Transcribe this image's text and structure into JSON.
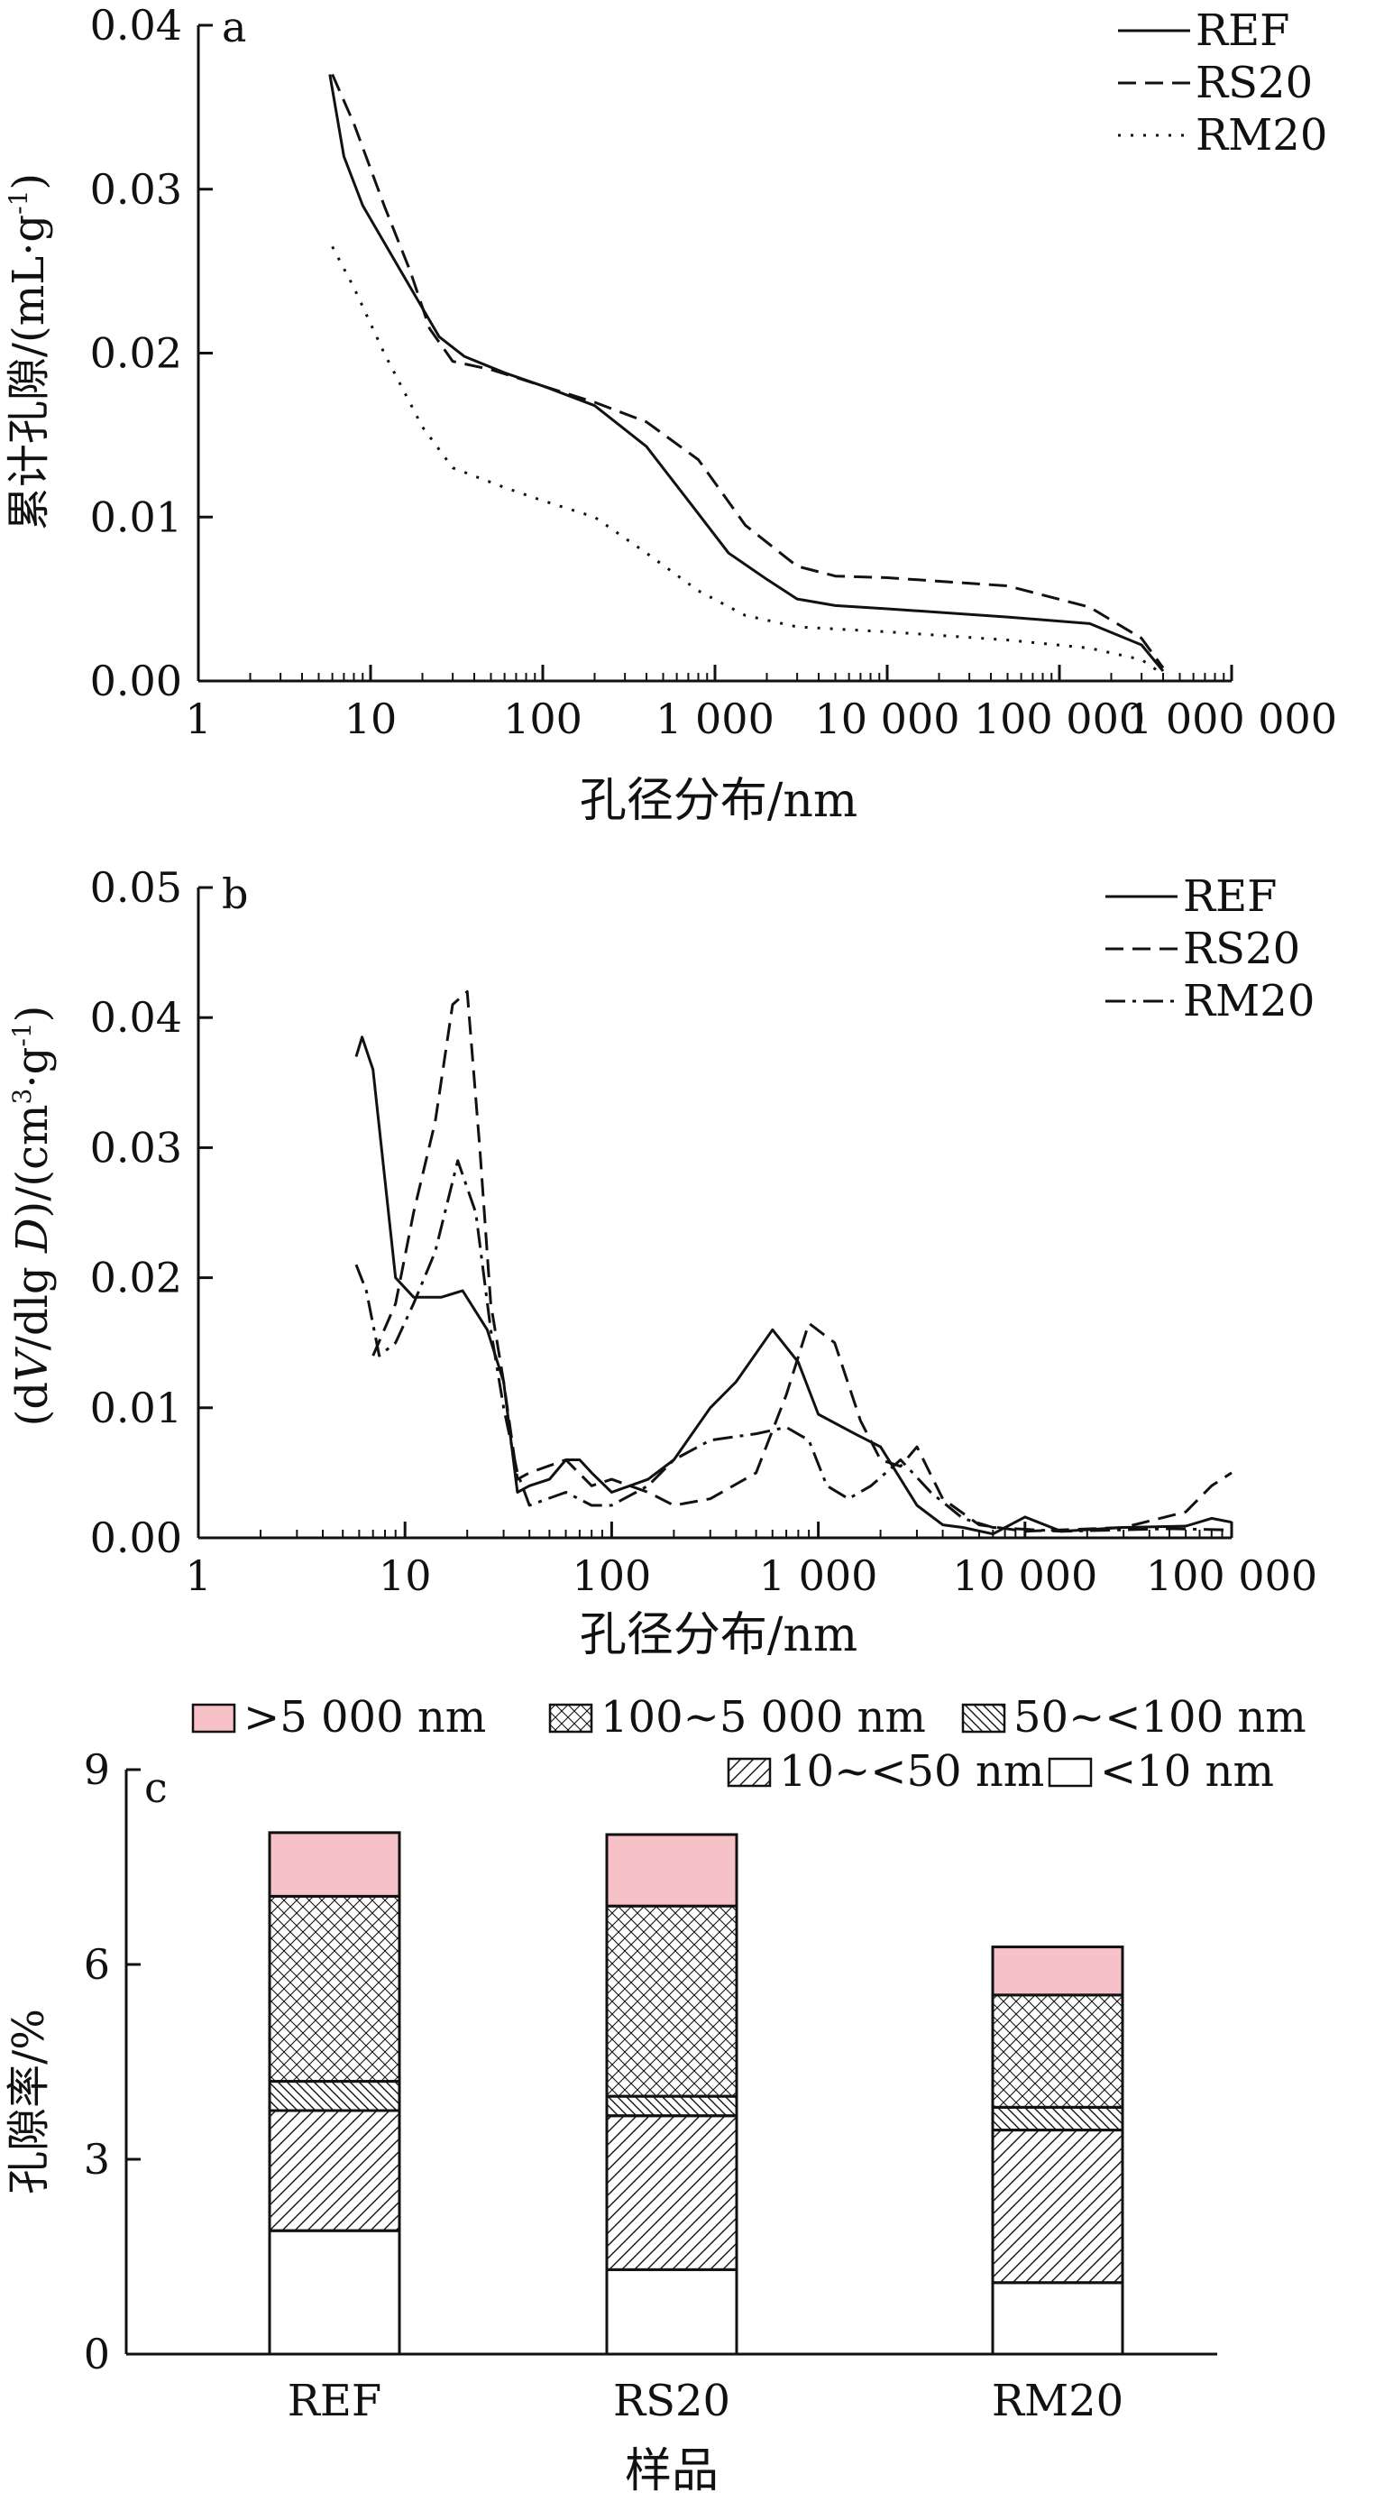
{
  "colors": {
    "ink": "#111111",
    "pink": "#f7c1c8",
    "white": "#ffffff"
  },
  "chart_data": [
    {
      "panel_label": "a",
      "type": "line",
      "xscale": "log",
      "xlim": [
        1,
        1000000
      ],
      "ylim": [
        0,
        0.04
      ],
      "xlabel": "孔径分布/nm",
      "ylabel": "累计孔隙/(mL·g",
      "ylabel_sup": "-1",
      "ylabel_end": ")",
      "xticks": [
        {
          "value": 1,
          "label": "1"
        },
        {
          "value": 10,
          "label": "10"
        },
        {
          "value": 100,
          "label": "100"
        },
        {
          "value": 1000,
          "label": "1 000"
        },
        {
          "value": 10000,
          "label": "10 000"
        },
        {
          "value": 100000,
          "label": "100 000"
        },
        {
          "value": 1000000,
          "label": "1 000 000"
        }
      ],
      "yticks": [
        {
          "value": 0,
          "label": "0.00"
        },
        {
          "value": 0.01,
          "label": "0.01"
        },
        {
          "value": 0.02,
          "label": "0.02"
        },
        {
          "value": 0.03,
          "label": "0.03"
        },
        {
          "value": 0.04,
          "label": "0.04"
        }
      ],
      "legend_position": "top-right",
      "series": [
        {
          "name": "REF",
          "style": "solid",
          "points": [
            [
              5.8,
              0.037
            ],
            [
              7,
              0.032
            ],
            [
              9,
              0.029
            ],
            [
              15,
              0.025
            ],
            [
              25,
              0.021
            ],
            [
              35,
              0.0198
            ],
            [
              60,
              0.0188
            ],
            [
              100,
              0.018
            ],
            [
              200,
              0.0168
            ],
            [
              400,
              0.0143
            ],
            [
              700,
              0.011
            ],
            [
              1200,
              0.0078
            ],
            [
              2000,
              0.0062
            ],
            [
              3000,
              0.005
            ],
            [
              5000,
              0.0046
            ],
            [
              10000,
              0.0044
            ],
            [
              50000,
              0.0039
            ],
            [
              150000,
              0.0035
            ],
            [
              300000,
              0.0022
            ],
            [
              400000,
              0.0006
            ]
          ]
        },
        {
          "name": "RS20",
          "style": "dashed",
          "points": [
            [
              6,
              0.037
            ],
            [
              8,
              0.034
            ],
            [
              12,
              0.029
            ],
            [
              17,
              0.025
            ],
            [
              22,
              0.0215
            ],
            [
              30,
              0.0195
            ],
            [
              50,
              0.019
            ],
            [
              100,
              0.018
            ],
            [
              200,
              0.017
            ],
            [
              400,
              0.0158
            ],
            [
              800,
              0.0135
            ],
            [
              1500,
              0.0095
            ],
            [
              3000,
              0.007
            ],
            [
              5000,
              0.0064
            ],
            [
              10000,
              0.0063
            ],
            [
              50000,
              0.0058
            ],
            [
              150000,
              0.0045
            ],
            [
              300000,
              0.0026
            ],
            [
              400000,
              0.0008
            ]
          ]
        },
        {
          "name": "RM20",
          "style": "dotted",
          "points": [
            [
              6,
              0.0265
            ],
            [
              8,
              0.024
            ],
            [
              12,
              0.02
            ],
            [
              20,
              0.0155
            ],
            [
              30,
              0.013
            ],
            [
              60,
              0.0118
            ],
            [
              100,
              0.011
            ],
            [
              200,
              0.01
            ],
            [
              400,
              0.0078
            ],
            [
              800,
              0.0055
            ],
            [
              1500,
              0.004
            ],
            [
              3000,
              0.0033
            ],
            [
              10000,
              0.003
            ],
            [
              50000,
              0.0025
            ],
            [
              150000,
              0.002
            ],
            [
              300000,
              0.0013
            ],
            [
              400000,
              0.0004
            ]
          ]
        }
      ]
    },
    {
      "panel_label": "b",
      "type": "line",
      "xscale": "log",
      "xlim": [
        1,
        100000
      ],
      "ylim": [
        0,
        0.05
      ],
      "xlabel": "孔径分布/nm",
      "ylabel_prefix": "(d",
      "ylabel_v": "V",
      "ylabel_mid": "/dlg ",
      "ylabel_d": "D",
      "ylabel_unit": ")/(cm",
      "ylabel_sup1": "3",
      "ylabel_mid2": "·g",
      "ylabel_sup2": "-1",
      "ylabel_end": ")",
      "xticks": [
        {
          "value": 1,
          "label": "1"
        },
        {
          "value": 10,
          "label": "10"
        },
        {
          "value": 100,
          "label": "100"
        },
        {
          "value": 1000,
          "label": "1 000"
        },
        {
          "value": 10000,
          "label": "10 000"
        },
        {
          "value": 100000,
          "label": "100 000"
        }
      ],
      "yticks": [
        {
          "value": 0,
          "label": "0.00"
        },
        {
          "value": 0.01,
          "label": "0.01"
        },
        {
          "value": 0.02,
          "label": "0.02"
        },
        {
          "value": 0.03,
          "label": "0.03"
        },
        {
          "value": 0.04,
          "label": "0.04"
        },
        {
          "value": 0.05,
          "label": "0.05"
        }
      ],
      "legend_position": "top-right",
      "series": [
        {
          "name": "REF",
          "style": "solid",
          "points": [
            [
              5.8,
              0.037
            ],
            [
              6.2,
              0.0385
            ],
            [
              7,
              0.036
            ],
            [
              9,
              0.02
            ],
            [
              11,
              0.0185
            ],
            [
              15,
              0.0185
            ],
            [
              19,
              0.019
            ],
            [
              25,
              0.016
            ],
            [
              30,
              0.012
            ],
            [
              35,
              0.0035
            ],
            [
              40,
              0.004
            ],
            [
              50,
              0.0045
            ],
            [
              60,
              0.006
            ],
            [
              70,
              0.006
            ],
            [
              80,
              0.005
            ],
            [
              100,
              0.0035
            ],
            [
              150,
              0.0045
            ],
            [
              200,
              0.006
            ],
            [
              300,
              0.01
            ],
            [
              400,
              0.012
            ],
            [
              600,
              0.016
            ],
            [
              800,
              0.0135
            ],
            [
              1000,
              0.0095
            ],
            [
              1500,
              0.008
            ],
            [
              2000,
              0.007
            ],
            [
              3000,
              0.0025
            ],
            [
              4000,
              0.001
            ],
            [
              5000,
              0.0008
            ],
            [
              7000,
              0.0003
            ],
            [
              10000,
              0.0016
            ],
            [
              15000,
              0.0005
            ],
            [
              30000,
              0.0008
            ],
            [
              60000,
              0.0009
            ],
            [
              80000,
              0.0015
            ],
            [
              100000,
              0.0012
            ]
          ]
        },
        {
          "name": "RS20",
          "style": "dashed",
          "points": [
            [
              7,
              0.014
            ],
            [
              9,
              0.018
            ],
            [
              11,
              0.025
            ],
            [
              14,
              0.032
            ],
            [
              17,
              0.041
            ],
            [
              20,
              0.042
            ],
            [
              23,
              0.03
            ],
            [
              26,
              0.018
            ],
            [
              30,
              0.012
            ],
            [
              35,
              0.0045
            ],
            [
              40,
              0.005
            ],
            [
              60,
              0.006
            ],
            [
              80,
              0.004
            ],
            [
              100,
              0.0045
            ],
            [
              150,
              0.0035
            ],
            [
              200,
              0.0025
            ],
            [
              300,
              0.003
            ],
            [
              500,
              0.005
            ],
            [
              700,
              0.011
            ],
            [
              900,
              0.0165
            ],
            [
              1200,
              0.015
            ],
            [
              1600,
              0.009
            ],
            [
              2000,
              0.006
            ],
            [
              2500,
              0.0055
            ],
            [
              3000,
              0.007
            ],
            [
              4000,
              0.003
            ],
            [
              6000,
              0.001
            ],
            [
              10000,
              0.0005
            ],
            [
              30000,
              0.0008
            ],
            [
              60000,
              0.002
            ],
            [
              80000,
              0.004
            ],
            [
              100000,
              0.005
            ]
          ]
        },
        {
          "name": "RM20",
          "style": "dashdot",
          "points": [
            [
              5.8,
              0.021
            ],
            [
              6.5,
              0.019
            ],
            [
              7.5,
              0.014
            ],
            [
              9,
              0.015
            ],
            [
              11,
              0.018
            ],
            [
              14,
              0.022
            ],
            [
              18,
              0.029
            ],
            [
              22,
              0.025
            ],
            [
              26,
              0.016
            ],
            [
              30,
              0.01
            ],
            [
              35,
              0.005
            ],
            [
              40,
              0.0025
            ],
            [
              60,
              0.0035
            ],
            [
              80,
              0.0025
            ],
            [
              100,
              0.0025
            ],
            [
              150,
              0.004
            ],
            [
              200,
              0.006
            ],
            [
              300,
              0.0075
            ],
            [
              500,
              0.008
            ],
            [
              700,
              0.0085
            ],
            [
              900,
              0.0075
            ],
            [
              1100,
              0.004
            ],
            [
              1400,
              0.003
            ],
            [
              1800,
              0.004
            ],
            [
              2500,
              0.006
            ],
            [
              3500,
              0.0035
            ],
            [
              5000,
              0.0015
            ],
            [
              7000,
              0.0008
            ],
            [
              15000,
              0.0005
            ],
            [
              50000,
              0.0007
            ],
            [
              100000,
              0.0006
            ]
          ]
        }
      ]
    },
    {
      "panel_label": "c",
      "type": "bar",
      "stacked": true,
      "categories": [
        "REF",
        "RS20",
        "RM20"
      ],
      "xlabel": "样品",
      "ylabel": "孔隙率/%",
      "ylim": [
        0,
        9
      ],
      "yticks": [
        {
          "value": 0,
          "label": "0"
        },
        {
          "value": 3,
          "label": "3"
        },
        {
          "value": 6,
          "label": "6"
        },
        {
          "value": 9,
          "label": "9"
        }
      ],
      "legend_position": "top",
      "series": [
        {
          "name": "<10 nm",
          "pattern": "white",
          "values": [
            1.9,
            1.3,
            1.1
          ]
        },
        {
          "name": "10~<50 nm",
          "pattern": "diag-forward",
          "values": [
            1.85,
            2.37,
            2.35
          ]
        },
        {
          "name": "50~<100 nm",
          "pattern": "diag-back",
          "values": [
            0.45,
            0.3,
            0.35
          ]
        },
        {
          "name": "100~5 000 nm",
          "pattern": "crosshatch",
          "values": [
            2.85,
            2.93,
            1.73
          ]
        },
        {
          "name": ">5 000 nm",
          "pattern": "pink",
          "values": [
            0.98,
            1.1,
            0.74
          ]
        }
      ]
    }
  ]
}
